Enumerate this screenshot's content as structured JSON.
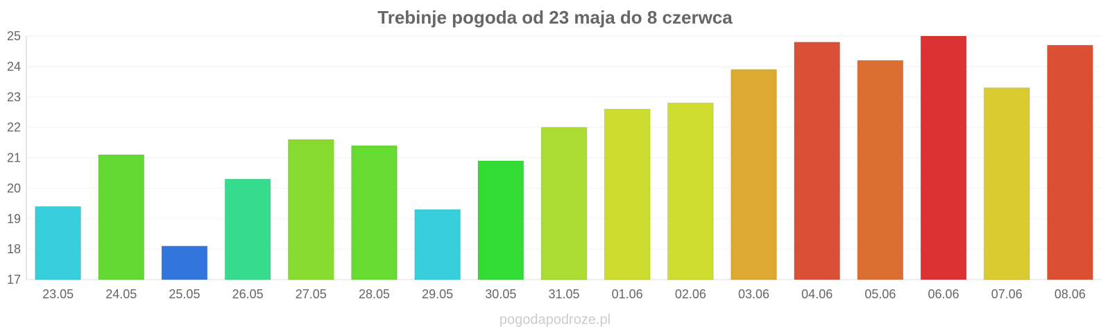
{
  "chart_data": {
    "type": "bar",
    "title": "Trebinje pogoda od 23 maja do 8 czerwca",
    "categories": [
      "23.05",
      "24.05",
      "25.05",
      "26.05",
      "27.05",
      "28.05",
      "29.05",
      "30.05",
      "31.05",
      "01.06",
      "02.06",
      "03.06",
      "04.06",
      "05.06",
      "06.06",
      "07.06",
      "08.06"
    ],
    "values": [
      19.4,
      21.1,
      18.1,
      20.3,
      21.6,
      21.4,
      19.3,
      20.9,
      22.0,
      22.6,
      22.8,
      23.9,
      24.8,
      24.2,
      25.0,
      23.3,
      24.7
    ],
    "colors": [
      "#36cfdb",
      "#62d930",
      "#3275dc",
      "#35dc8b",
      "#88da2e",
      "#68db33",
      "#36cfdb",
      "#33dc33",
      "#aadc33",
      "#cddd2e",
      "#cfdd31",
      "#dca932",
      "#db4f36",
      "#db6e33",
      "#db3333",
      "#dacb32",
      "#db4f33"
    ],
    "ylim": [
      17,
      25
    ],
    "yticks": [
      17,
      18,
      19,
      20,
      21,
      22,
      23,
      24,
      25
    ],
    "grid": true,
    "legend": "none"
  },
  "watermark": "pogodapodroze.pl"
}
